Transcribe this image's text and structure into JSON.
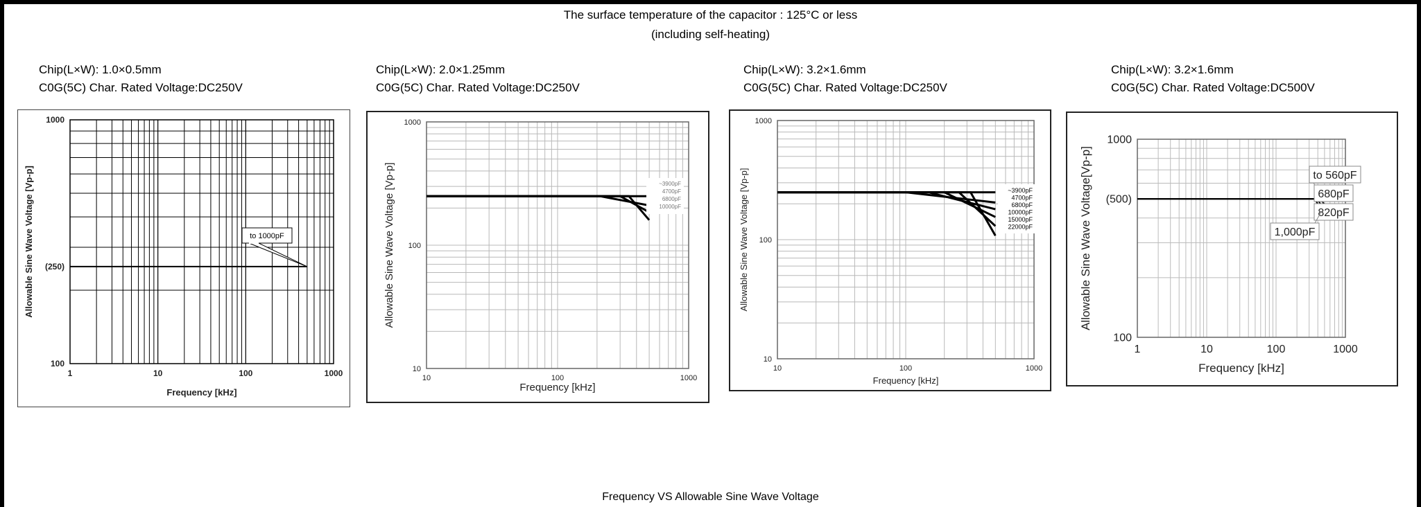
{
  "header": {
    "line1": "The surface temperature of the capacitor : 125°C or less",
    "line2": "(including self-heating)"
  },
  "footer": {
    "caption": "Frequency VS Allowable Sine Wave Voltage"
  },
  "chart_data": [
    {
      "type": "line",
      "caption": {
        "chip": "Chip(L×W): 1.0×0.5mm",
        "rating": "C0G(5C) Char. Rated Voltage:DC250V"
      },
      "xlabel": "Frequency [kHz]",
      "ylabel": "Allowable Sine Wave Voltage [Vp-p]",
      "x_scale": "log",
      "y_scale": "log",
      "xlim": [
        1,
        1000
      ],
      "ylim": [
        100,
        1000
      ],
      "xticks": [
        1,
        10,
        100,
        1000
      ],
      "xtick_labels": [
        "1",
        "10",
        "100",
        "1000"
      ],
      "yticks": [
        100,
        250,
        1000
      ],
      "ytick_labels": [
        "100",
        "(250)",
        "1000"
      ],
      "series": [
        {
          "name": "to 1000pF",
          "x": [
            1,
            500
          ],
          "y": [
            250,
            250
          ]
        }
      ]
    },
    {
      "type": "line",
      "caption": {
        "chip": "Chip(L×W): 2.0×1.25mm",
        "rating": "C0G(5C) Char. Rated Voltage:DC250V"
      },
      "xlabel": "Frequency [kHz]",
      "ylabel": "Allowable Sine Wave Voltage [Vp-p]",
      "x_scale": "log",
      "y_scale": "log",
      "xlim": [
        10,
        1000
      ],
      "ylim": [
        10,
        1000
      ],
      "xticks": [
        10,
        100,
        1000
      ],
      "xtick_labels": [
        "10",
        "100",
        "1000"
      ],
      "yticks": [
        10,
        100,
        1000
      ],
      "ytick_labels": [
        "10",
        "100",
        "1000"
      ],
      "series": [
        {
          "name": "~3900pF",
          "x": [
            10,
            500
          ],
          "y": [
            250,
            250
          ]
        },
        {
          "name": "4700pF",
          "x": [
            10,
            210,
            500
          ],
          "y": [
            250,
            250,
            210
          ]
        },
        {
          "name": "6800pF",
          "x": [
            10,
            300,
            500
          ],
          "y": [
            250,
            250,
            185
          ]
        },
        {
          "name": "10000pF",
          "x": [
            10,
            350,
            500
          ],
          "y": [
            250,
            250,
            160
          ]
        }
      ]
    },
    {
      "type": "line",
      "caption": {
        "chip": "Chip(L×W): 3.2×1.6mm",
        "rating": "C0G(5C) Char. Rated Voltage:DC250V"
      },
      "xlabel": "Frequency [kHz]",
      "ylabel": "Allowable Sine Wave Voltage [Vp-p]",
      "x_scale": "log",
      "y_scale": "log",
      "xlim": [
        10,
        1000
      ],
      "ylim": [
        10,
        1000
      ],
      "xticks": [
        10,
        100,
        1000
      ],
      "xtick_labels": [
        "10",
        "100",
        "1000"
      ],
      "yticks": [
        10,
        100,
        1000
      ],
      "ytick_labels": [
        "10",
        "100",
        "1000"
      ],
      "series": [
        {
          "name": "~3900pF",
          "x": [
            10,
            500
          ],
          "y": [
            250,
            250
          ]
        },
        {
          "name": "4700pF",
          "x": [
            10,
            100,
            500
          ],
          "y": [
            250,
            250,
            205
          ]
        },
        {
          "name": "6800pF",
          "x": [
            10,
            150,
            500
          ],
          "y": [
            250,
            250,
            180
          ]
        },
        {
          "name": "10000pF",
          "x": [
            10,
            200,
            500
          ],
          "y": [
            250,
            250,
            155
          ]
        },
        {
          "name": "15000pF",
          "x": [
            10,
            260,
            500
          ],
          "y": [
            250,
            250,
            130
          ]
        },
        {
          "name": "22000pF",
          "x": [
            10,
            320,
            500
          ],
          "y": [
            250,
            250,
            108
          ]
        }
      ]
    },
    {
      "type": "line",
      "caption": {
        "chip": "Chip(L×W): 3.2×1.6mm",
        "rating": "C0G(5C) Char. Rated Voltage:DC500V"
      },
      "xlabel": "Frequency [kHz]",
      "ylabel": "Allowable Sine Wave Voltage[Vp-p]",
      "x_scale": "log",
      "y_scale": "log",
      "xlim": [
        1,
        1000
      ],
      "ylim": [
        100,
        1000
      ],
      "xticks": [
        1,
        10,
        100,
        1000
      ],
      "xtick_labels": [
        "1",
        "10",
        "100",
        "1000"
      ],
      "yticks": [
        100,
        500,
        1000
      ],
      "ytick_labels": [
        "100",
        "(500)",
        "1000"
      ],
      "series": [
        {
          "name": "to 560pF",
          "x": [
            1,
            500
          ],
          "y": [
            500,
            500
          ]
        },
        {
          "name": "680pF",
          "x": [
            1,
            420,
            500
          ],
          "y": [
            500,
            500,
            470
          ]
        },
        {
          "name": "820pF",
          "x": [
            1,
            390,
            500
          ],
          "y": [
            500,
            500,
            440
          ]
        },
        {
          "name": "1,000pF",
          "x": [
            1,
            360,
            500
          ],
          "y": [
            500,
            500,
            415
          ]
        }
      ]
    }
  ]
}
